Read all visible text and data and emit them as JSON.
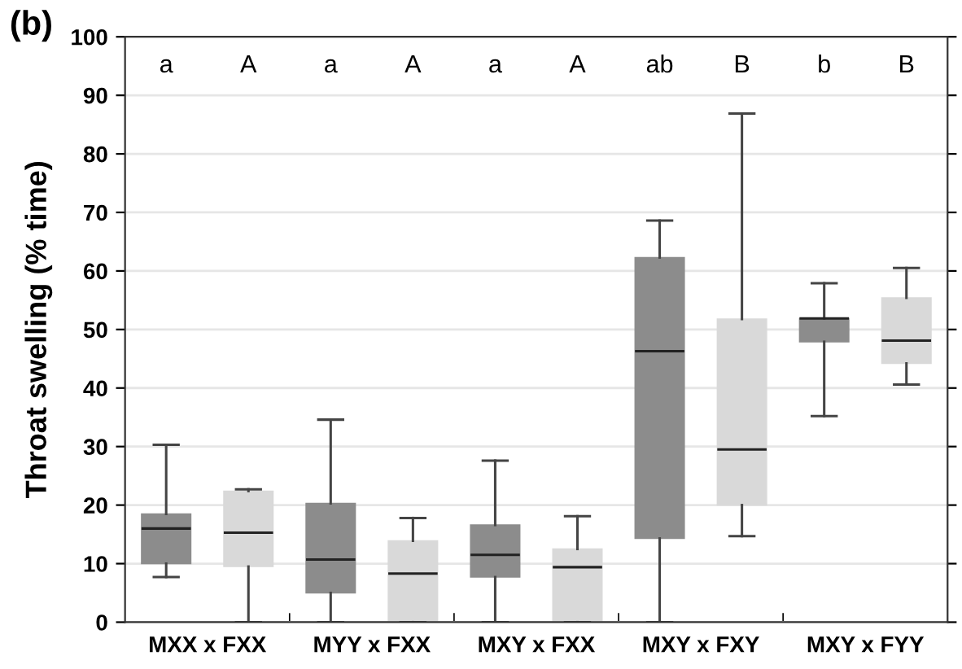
{
  "chart_data": {
    "type": "box",
    "title": "(b)",
    "ylabel": "Throat swelling (% time)",
    "categories": [
      "MXX x FXX",
      "MYY x FXX",
      "MXY x FXX",
      "MXY x FXY",
      "MXY x FYY"
    ],
    "series": [
      {
        "color": "#8c8c8c",
        "boxes": [
          {
            "low": 7.7,
            "q1": 10,
            "median": 16,
            "q3": 18.5,
            "high": 30.3
          },
          {
            "low": 0,
            "q1": 5,
            "median": 10.7,
            "q3": 20.3,
            "high": 34.6
          },
          {
            "low": 0,
            "q1": 7.7,
            "median": 11.5,
            "q3": 16.6,
            "high": 27.6
          },
          {
            "low": 0,
            "q1": 14.3,
            "median": 46.3,
            "q3": 62.3,
            "high": 68.6
          },
          {
            "low": 35.2,
            "q1": 47.9,
            "median": 51.9,
            "q3": 51.9,
            "high": 57.9
          }
        ]
      },
      {
        "color": "#d9d9d9",
        "boxes": [
          {
            "low": 0,
            "q1": 9.5,
            "median": 15.3,
            "q3": 22.4,
            "high": 22.7
          },
          {
            "low": 0,
            "q1": 0,
            "median": 8.3,
            "q3": 13.9,
            "high": 17.8
          },
          {
            "low": 0,
            "q1": 0,
            "median": 9.4,
            "q3": 12.5,
            "high": 18.1
          },
          {
            "low": 14.7,
            "q1": 20,
            "median": 29.5,
            "q3": 51.8,
            "high": 86.9
          },
          {
            "low": 40.6,
            "q1": 44.2,
            "median": 48.1,
            "q3": 55.4,
            "high": 60.5
          }
        ]
      }
    ],
    "annotations": [
      "a",
      "A",
      "a",
      "A",
      "a",
      "A",
      "ab",
      "B",
      "b",
      "B"
    ],
    "ylim": [
      0,
      100
    ],
    "yticks": [
      0,
      10,
      20,
      30,
      40,
      50,
      60,
      70,
      80,
      90,
      100
    ],
    "grid": "y"
  }
}
